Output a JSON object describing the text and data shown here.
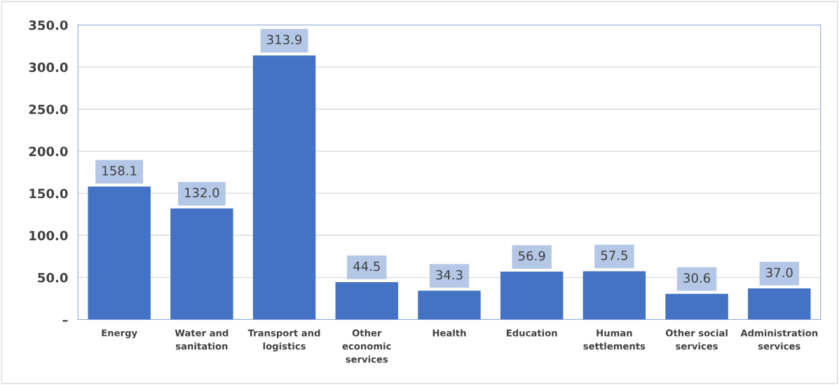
{
  "chart_data": {
    "type": "bar",
    "categories": [
      "Energy",
      "Water and\nsanitation",
      "Transport and\nlogistics",
      "Other\neconomic\nservices",
      "Health",
      "Education",
      "Human\nsettlements",
      "Other social\nservices",
      "Administration\nservices"
    ],
    "values": [
      158.1,
      132.0,
      313.9,
      44.5,
      34.3,
      56.9,
      57.5,
      30.6,
      37.0
    ],
    "value_labels": [
      "158.1",
      "132.0",
      "313.9",
      "44.5",
      "34.3",
      "56.9",
      "57.5",
      "30.6",
      "37.0"
    ],
    "color": "#4472c4",
    "ylim": [
      0,
      350
    ],
    "yticks": [
      {
        "value": 0,
        "label": "–"
      },
      {
        "value": 50,
        "label": "50.0"
      },
      {
        "value": 100,
        "label": "100.0"
      },
      {
        "value": 150,
        "label": "150.0"
      },
      {
        "value": 200,
        "label": "200.0"
      },
      {
        "value": 250,
        "label": "250.0"
      },
      {
        "value": 300,
        "label": "300.0"
      },
      {
        "value": 350,
        "label": "350.0"
      }
    ],
    "grid": "y"
  }
}
